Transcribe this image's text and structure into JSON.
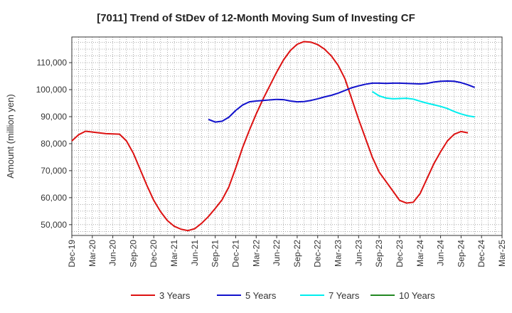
{
  "chart_data": {
    "type": "line",
    "title": "[7011]  Trend of StDev of 12-Month Moving Sum of Investing CF",
    "ylabel": "Amount (million yen)",
    "xlabel": "",
    "ylim": [
      46000,
      119500
    ],
    "yticks": [
      50000,
      60000,
      70000,
      80000,
      90000,
      100000,
      110000
    ],
    "ytick_labels": [
      "50,000",
      "60,000",
      "70,000",
      "80,000",
      "90,000",
      "100,000",
      "110,000"
    ],
    "xticks": [
      "2019-12",
      "2020-03",
      "2020-06",
      "2020-09",
      "2020-12",
      "2021-03",
      "2021-06",
      "2021-09",
      "2021-12",
      "2022-03",
      "2022-06",
      "2022-09",
      "2022-12",
      "2023-03",
      "2023-06",
      "2023-09",
      "2023-12",
      "2024-03",
      "2024-06",
      "2024-09",
      "2024-12",
      "2025-03"
    ],
    "xtick_labels": [
      "Dec-19",
      "Mar-20",
      "Jun-20",
      "Sep-20",
      "Dec-20",
      "Mar-21",
      "Jun-21",
      "Sep-21",
      "Dec-21",
      "Mar-22",
      "Jun-22",
      "Sep-22",
      "Dec-22",
      "Mar-23",
      "Jun-23",
      "Sep-23",
      "Dec-23",
      "Mar-24",
      "Jun-24",
      "Sep-24",
      "Dec-24",
      "Mar-25"
    ],
    "grid": true,
    "legend_position": "bottom",
    "series": [
      {
        "name": "3 Years",
        "color": "#dd1111",
        "start": "2019-12",
        "values": [
          81000,
          83300,
          84600,
          84300,
          84000,
          83700,
          83600,
          83500,
          81000,
          76500,
          70500,
          64500,
          59000,
          54800,
          51500,
          49400,
          48300,
          47800,
          48500,
          50500,
          53000,
          56000,
          59200,
          64000,
          71000,
          78500,
          85000,
          91000,
          96500,
          101500,
          106500,
          111000,
          114500,
          116800,
          117800,
          117600,
          116700,
          115000,
          112500,
          109000,
          104000,
          96500,
          89000,
          82000,
          75000,
          69500,
          66000,
          62500,
          59000,
          58000,
          58300,
          61500,
          67000,
          72500,
          77000,
          81000,
          83500,
          84500,
          84000
        ]
      },
      {
        "name": "5 Years",
        "color": "#1111cc",
        "start": "2021-08",
        "values": [
          89000,
          88000,
          88300,
          89800,
          92300,
          94300,
          95500,
          95800,
          96000,
          96200,
          96400,
          96300,
          95800,
          95500,
          95600,
          96000,
          96600,
          97300,
          97900,
          98700,
          99700,
          100700,
          101400,
          102000,
          102400,
          102400,
          102300,
          102400,
          102400,
          102300,
          102200,
          102100,
          102300,
          102800,
          103100,
          103200,
          103100,
          102600,
          101800,
          100800
        ]
      },
      {
        "name": "7 Years",
        "color": "#00eeee",
        "start": "2023-08",
        "values": [
          99300,
          97700,
          96900,
          96600,
          96700,
          96800,
          96500,
          95700,
          95000,
          94400,
          93800,
          93000,
          91900,
          91000,
          90300,
          89900
        ]
      },
      {
        "name": "10 Years",
        "color": "#228822",
        "start": "2019-12",
        "values": []
      }
    ]
  }
}
